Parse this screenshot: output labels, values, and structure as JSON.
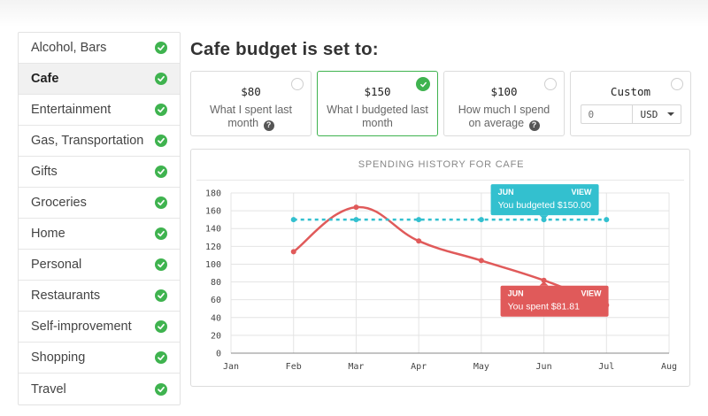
{
  "sidebar": {
    "items": [
      {
        "label": "Alcohol, Bars",
        "checked": true,
        "active": false
      },
      {
        "label": "Cafe",
        "checked": true,
        "active": true
      },
      {
        "label": "Entertainment",
        "checked": true,
        "active": false
      },
      {
        "label": "Gas, Transportation",
        "checked": true,
        "active": false
      },
      {
        "label": "Gifts",
        "checked": true,
        "active": false
      },
      {
        "label": "Groceries",
        "checked": true,
        "active": false
      },
      {
        "label": "Home",
        "checked": true,
        "active": false
      },
      {
        "label": "Personal",
        "checked": true,
        "active": false
      },
      {
        "label": "Restaurants",
        "checked": true,
        "active": false
      },
      {
        "label": "Self-improvement",
        "checked": true,
        "active": false
      },
      {
        "label": "Shopping",
        "checked": true,
        "active": false
      },
      {
        "label": "Travel",
        "checked": true,
        "active": false
      }
    ]
  },
  "main": {
    "title": "Cafe budget is set to:",
    "options": [
      {
        "amount": "$80",
        "desc": "What I spent last month",
        "help": true,
        "selected": false
      },
      {
        "amount": "$150",
        "desc": "What I budgeted last month",
        "help": false,
        "selected": true
      },
      {
        "amount": "$100",
        "desc": "How much I spend on average",
        "help": true,
        "selected": false
      }
    ],
    "custom": {
      "label": "Custom",
      "placeholder": "0",
      "currency": "USD",
      "selected": false
    }
  },
  "colors": {
    "accent_green": "#3fb34f",
    "spent_red": "#e05a5a",
    "budget_teal": "#33c0cf"
  },
  "chart_data": {
    "type": "line",
    "title": "SPENDING HISTORY FOR CAFE",
    "categories": [
      "Jan",
      "Feb",
      "Mar",
      "Apr",
      "May",
      "Jun",
      "Jul",
      "Aug"
    ],
    "ylim": [
      0,
      180
    ],
    "yticks": [
      0,
      20,
      40,
      60,
      80,
      100,
      120,
      140,
      160,
      180
    ],
    "grid": true,
    "series": [
      {
        "key": "spent",
        "style": "solid-smooth",
        "color": "#e05a5a",
        "x": [
          "Feb",
          "Mar",
          "Apr",
          "May",
          "Jun",
          "Jul"
        ],
        "values": [
          114,
          164,
          126,
          104,
          81.81,
          54
        ]
      },
      {
        "key": "budgeted",
        "style": "dashed",
        "color": "#33c0cf",
        "x": [
          "Feb",
          "Mar",
          "Apr",
          "May",
          "Jun",
          "Jul"
        ],
        "values": [
          150,
          150,
          150,
          150,
          150,
          150
        ]
      }
    ],
    "tooltips": [
      {
        "series": "budgeted",
        "month": "JUN",
        "link": "VIEW",
        "text": "You budgeted $150.00"
      },
      {
        "series": "spent",
        "month": "JUN",
        "link": "VIEW",
        "text": "You spent $81.81"
      }
    ]
  }
}
